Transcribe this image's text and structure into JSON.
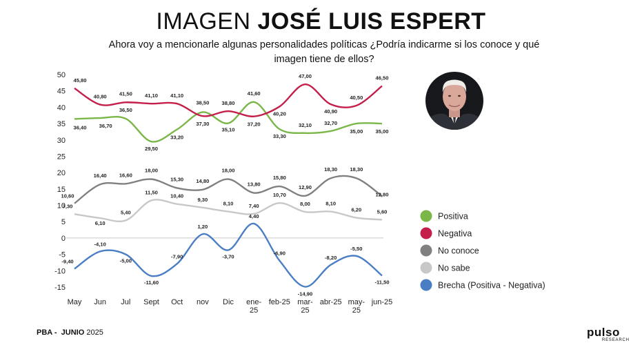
{
  "header": {
    "title_light": "IMAGEN",
    "title_bold": "JOSÉ LUIS ESPERT",
    "subtitle_line1": "Ahora voy a mencionarle algunas personalidades políticas ¿Podría indicarme si los conoce y qué",
    "subtitle_line2": "imagen tiene de ellos?"
  },
  "footer": {
    "left_bold1": "PBA -",
    "left_bold2": "JUNIO",
    "left_regular": "2025",
    "logo_word": "pulso",
    "logo_sub": "RESEARCH"
  },
  "chart_data": {
    "type": "line",
    "title": "",
    "xlabel": "",
    "ylabel": "",
    "categories": [
      [
        "May"
      ],
      [
        "Jun"
      ],
      [
        "Jul"
      ],
      [
        "Sept"
      ],
      [
        "Oct"
      ],
      [
        "nov"
      ],
      [
        "Dic"
      ],
      [
        "ene-",
        "25"
      ],
      [
        "feb-25"
      ],
      [
        "mar-",
        "25"
      ],
      [
        "abr-25"
      ],
      [
        "may-",
        "25"
      ],
      [
        "jun-25"
      ]
    ],
    "ylim": [
      -15,
      50
    ],
    "yticks": [
      50,
      45,
      40,
      35,
      30,
      25,
      20,
      15,
      10,
      5,
      0,
      -5,
      -10,
      -15
    ],
    "grid": false,
    "legend_position": "right",
    "series": [
      {
        "name": "Positiva",
        "color": "#7ab648",
        "values": [
          36.4,
          36.7,
          36.5,
          29.5,
          33.2,
          38.5,
          35.1,
          41.6,
          33.3,
          32.1,
          32.7,
          35.0,
          35.0
        ],
        "labels": [
          "36,40",
          "36,70",
          "36,50",
          "29,50",
          "33,20",
          "38,50",
          "35,10",
          "41,60",
          "33,30",
          "32,10",
          "32,70",
          "35,00",
          "35,00"
        ]
      },
      {
        "name": "Negativa",
        "color": "#c41e4a",
        "values": [
          45.8,
          40.8,
          41.5,
          41.1,
          41.1,
          37.3,
          38.8,
          37.2,
          40.2,
          47.0,
          40.9,
          40.5,
          46.5
        ],
        "labels": [
          "45,80",
          "40,80",
          "41,50",
          "41,10",
          "41,10",
          "37,30",
          "38,80",
          "37,20",
          "40,20",
          "47,00",
          "40,90",
          "40,50",
          "46,50"
        ]
      },
      {
        "name": "No conoce",
        "color": "#808080",
        "values": [
          10.6,
          16.4,
          16.6,
          18.0,
          15.3,
          14.8,
          18.0,
          13.8,
          15.8,
          12.9,
          18.3,
          18.3,
          12.8
        ],
        "labels": [
          "10,60",
          "16,40",
          "16,60",
          "18,00",
          "15,30",
          "14,80",
          "18,00",
          "13,80",
          "15,80",
          "12,90",
          "18,30",
          "18,30",
          "12,80"
        ]
      },
      {
        "name": "No sabe",
        "color": "#c8c8c8",
        "values": [
          7.3,
          6.1,
          5.4,
          11.5,
          10.4,
          9.3,
          8.1,
          7.4,
          10.7,
          8.0,
          8.1,
          6.2,
          5.6
        ],
        "labels": [
          "7,30",
          "6,10",
          "5,40",
          "11,50",
          "10,40",
          "9,30",
          "8,10",
          "7,40",
          "10,70",
          "8,00",
          "8,10",
          "6,20",
          "5,60"
        ]
      },
      {
        "name": "Brecha (Positiva - Negativa)",
        "color": "#4a7ec4",
        "values": [
          -9.4,
          -4.1,
          -5.0,
          -11.6,
          -7.9,
          1.2,
          -3.7,
          4.4,
          -6.9,
          -14.9,
          -8.2,
          -5.5,
          -11.5
        ],
        "labels": [
          "-9,40",
          "-4,10",
          "-5,00",
          "-11,60",
          "-7,90",
          "1,20",
          "-3,70",
          "4,40",
          "-6,90",
          "-14,90",
          "-8,20",
          "-5,50",
          "-11,50"
        ]
      }
    ]
  }
}
